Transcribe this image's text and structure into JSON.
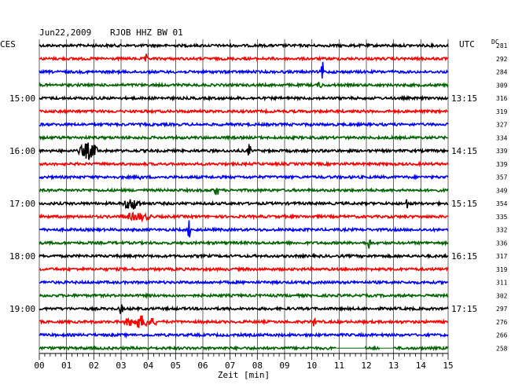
{
  "header": {
    "date": "Jun22,2009",
    "station": "RJOB HHZ BW 01",
    "left_tz": "CES",
    "right_tz": "UTC",
    "dc_label": "DC"
  },
  "chart_data": {
    "type": "line",
    "title": "Jun22,2009   RJOB HHZ BW 01",
    "xlabel": "Zeit [min]",
    "x_ticks": [
      "00",
      "01",
      "02",
      "03",
      "04",
      "05",
      "06",
      "07",
      "08",
      "09",
      "10",
      "11",
      "12",
      "13",
      "14",
      "15"
    ],
    "xlim": [
      0,
      15
    ],
    "grid": true,
    "trace_colors": [
      "#000000",
      "#ff0000",
      "#0000ff",
      "#006400"
    ],
    "left_hour_labels": [
      {
        "row": 4,
        "label": "15:00"
      },
      {
        "row": 8,
        "label": "16:00"
      },
      {
        "row": 12,
        "label": "17:00"
      },
      {
        "row": 16,
        "label": "18:00"
      },
      {
        "row": 20,
        "label": "19:00"
      }
    ],
    "right_hour_labels": [
      {
        "row": 4,
        "label": "13:15"
      },
      {
        "row": 8,
        "label": "14:15"
      },
      {
        "row": 12,
        "label": "15:15"
      },
      {
        "row": 16,
        "label": "16:15"
      },
      {
        "row": 20,
        "label": "17:15"
      }
    ],
    "dc_values": [
      281,
      292,
      284,
      309,
      316,
      319,
      327,
      334,
      339,
      339,
      357,
      349,
      354,
      335,
      332,
      336,
      317,
      319,
      311,
      302,
      297,
      276,
      266,
      258
    ],
    "events": [
      {
        "row": 1,
        "minute": 3.9,
        "amp": 8,
        "dur": 0.05
      },
      {
        "row": 2,
        "minute": 10.4,
        "amp": 14,
        "dur": 0.06
      },
      {
        "row": 3,
        "minute": 10.3,
        "amp": 5,
        "dur": 0.1
      },
      {
        "row": 8,
        "minute": 1.8,
        "amp": 12,
        "dur": 0.35
      },
      {
        "row": 8,
        "minute": 7.7,
        "amp": 10,
        "dur": 0.06
      },
      {
        "row": 10,
        "minute": 3.7,
        "amp": 4,
        "dur": 0.1
      },
      {
        "row": 11,
        "minute": 6.5,
        "amp": 10,
        "dur": 0.08
      },
      {
        "row": 12,
        "minute": 3.4,
        "amp": 9,
        "dur": 0.35
      },
      {
        "row": 12,
        "minute": 13.5,
        "amp": 9,
        "dur": 0.05
      },
      {
        "row": 13,
        "minute": 3.6,
        "amp": 6,
        "dur": 0.6
      },
      {
        "row": 14,
        "minute": 5.5,
        "amp": 16,
        "dur": 0.05
      },
      {
        "row": 15,
        "minute": 12.1,
        "amp": 10,
        "dur": 0.05
      },
      {
        "row": 20,
        "minute": 3.0,
        "amp": 9,
        "dur": 0.06
      },
      {
        "row": 21,
        "minute": 3.7,
        "amp": 9,
        "dur": 0.6
      },
      {
        "row": 21,
        "minute": 10.1,
        "amp": 9,
        "dur": 0.06
      }
    ],
    "gaps": [
      {
        "row": 23,
        "from": 10.9,
        "to": 11.95
      },
      {
        "row": 23,
        "from": 12.5,
        "to": 12.95
      }
    ]
  }
}
